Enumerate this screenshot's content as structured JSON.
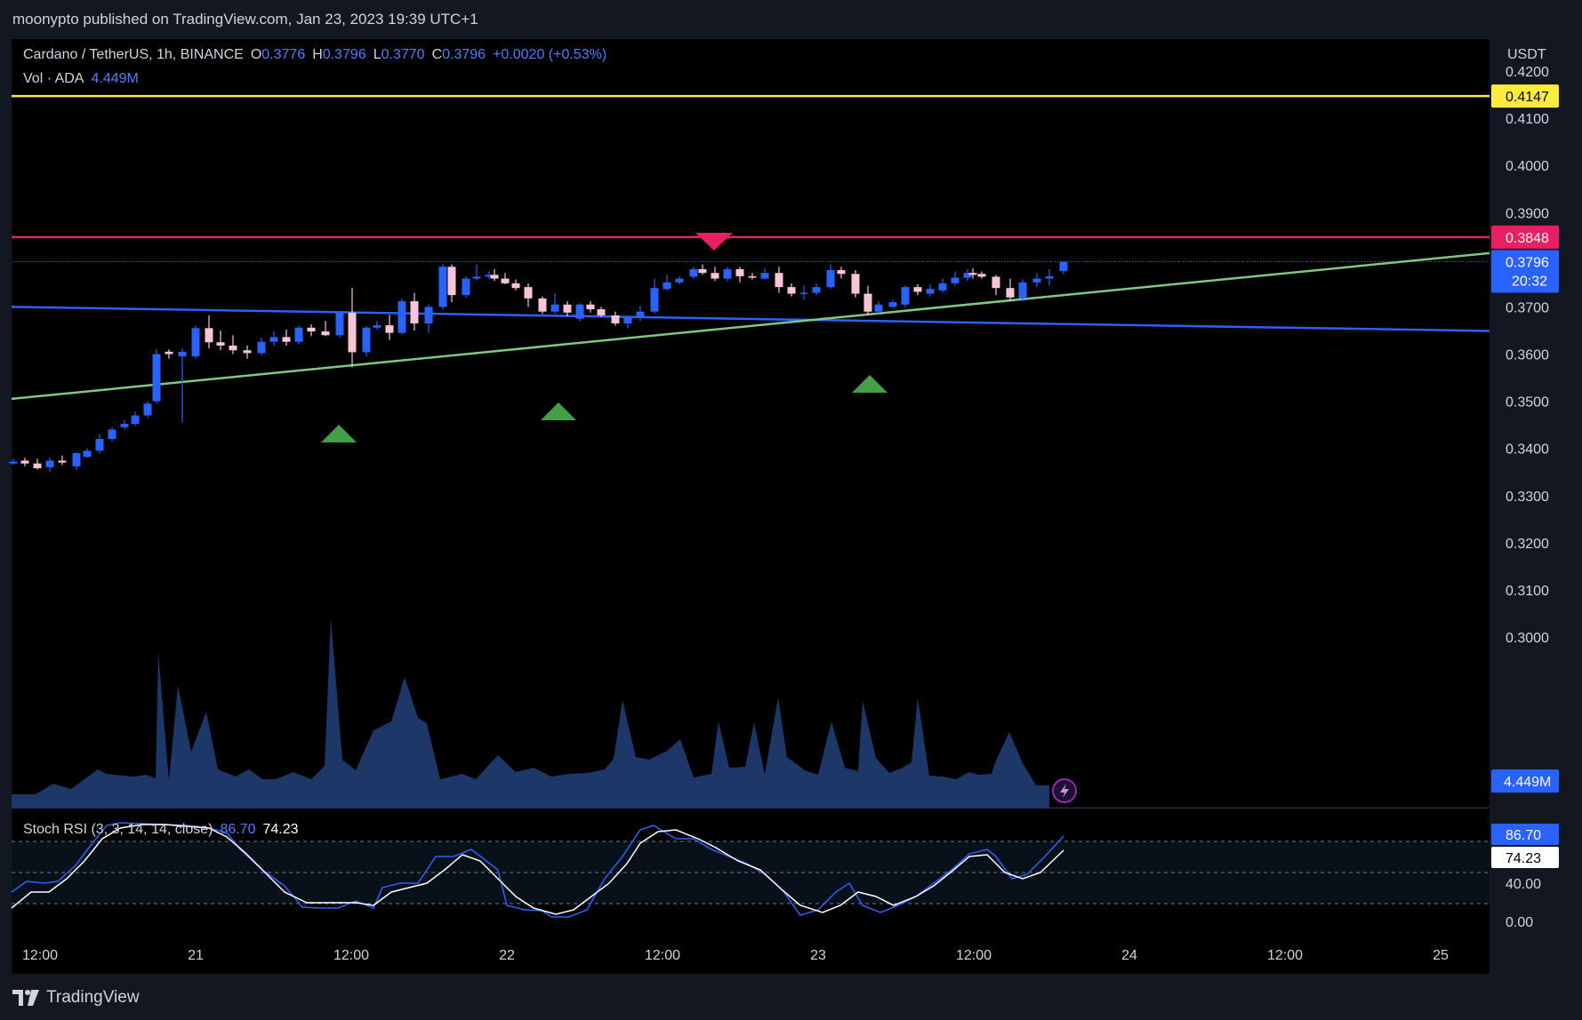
{
  "header": {
    "published_text": "moonypto published on TradingView.com, Jan 23, 2023 19:39 UTC+1"
  },
  "legend": {
    "symbol": "Cardano / TetherUS, 1h, BINANCE",
    "open_label": "O",
    "open": "0.3776",
    "high_label": "H",
    "high": "0.3796",
    "low_label": "L",
    "low": "0.3770",
    "close_label": "C",
    "close": "0.3796",
    "change": "+0.0020 (+0.53%)",
    "vol_label": "Vol · ADA",
    "vol_value": "4.449M",
    "stoch_label": "Stoch RSI (3, 3, 14, 14, close)",
    "stoch_k": "86.70",
    "stoch_d": "74.23"
  },
  "price_axis": {
    "currency": "USDT",
    "ticks": [
      "0.4200",
      "0.4100",
      "0.4000",
      "0.3900",
      "0.3700",
      "0.3600",
      "0.3500",
      "0.3400",
      "0.3300",
      "0.3200",
      "0.3100",
      "0.3000"
    ],
    "yellow_label": "0.4147",
    "red_label": "0.3848",
    "last_price_label": "0.3796",
    "countdown_label": "20:32",
    "volume_label": "4.449M"
  },
  "rsi_axis": {
    "ticks": [
      "40.00",
      "0.00"
    ],
    "k_label": "86.70",
    "d_label": "74.23"
  },
  "time_axis": {
    "ticks": [
      "12:00",
      "21",
      "12:00",
      "22",
      "12:00",
      "23",
      "12:00",
      "24",
      "12:00",
      "25"
    ]
  },
  "footer": {
    "brand": "TradingView"
  },
  "colors": {
    "background": "#131722",
    "chart_bg": "#000000",
    "up": "#2962ff",
    "down": "#f7c5d6",
    "yellow_line": "#ffeb3b",
    "red_line": "#e91e63",
    "blue_line": "#2962ff",
    "green_line": "#81c784",
    "volume_fill": "#1e3a6e",
    "stoch_k": "#2962ff",
    "stoch_d": "#ffffff",
    "marker_up": "#43a047",
    "marker_down": "#e91e63"
  },
  "chart_data": {
    "type": "candlestick",
    "title": "Cardano / TetherUS, 1h, BINANCE",
    "ylim": [
      0.294,
      0.4235
    ],
    "horizontal_levels": [
      {
        "name": "resistance-yellow",
        "value": 0.4147
      },
      {
        "name": "resistance-red",
        "value": 0.3848
      }
    ],
    "trendlines": [
      {
        "name": "blue",
        "from": [
          0,
          0.37
        ],
        "to": [
          98,
          0.3649
        ]
      },
      {
        "name": "green",
        "from": [
          0,
          0.3505
        ],
        "to": [
          98,
          0.3814
        ]
      }
    ],
    "markers": [
      {
        "type": "up",
        "index": 18
      },
      {
        "type": "up",
        "index": 31
      },
      {
        "type": "down",
        "index": 41
      },
      {
        "type": "up",
        "index": 50
      }
    ],
    "candles": [
      [
        0.3365,
        0.3378,
        0.336,
        0.3374
      ],
      [
        0.3374,
        0.338,
        0.3362,
        0.3368
      ],
      [
        0.3368,
        0.3378,
        0.3355,
        0.3358
      ],
      [
        0.3358,
        0.338,
        0.335,
        0.3376
      ],
      [
        0.3376,
        0.3385,
        0.337,
        0.3374
      ],
      [
        0.3374,
        0.3392,
        0.3355,
        0.339
      ],
      [
        0.339,
        0.341,
        0.3385,
        0.3405
      ],
      [
        0.3405,
        0.3435,
        0.34,
        0.343
      ],
      [
        0.343,
        0.345,
        0.3425,
        0.3445
      ],
      [
        0.3445,
        0.346,
        0.344,
        0.3452
      ],
      [
        0.3452,
        0.3478,
        0.3448,
        0.3474
      ],
      [
        0.3474,
        0.35,
        0.347,
        0.3495
      ],
      [
        0.3495,
        0.361,
        0.349,
        0.36
      ],
      [
        0.36,
        0.361,
        0.356,
        0.3605
      ],
      [
        0.3605,
        0.3612,
        0.3455,
        0.359
      ],
      [
        0.359,
        0.366,
        0.3585,
        0.3655
      ],
      [
        0.3655,
        0.3682,
        0.3612,
        0.362
      ],
      [
        0.362,
        0.365,
        0.3608,
        0.3618
      ],
      [
        0.3618,
        0.364,
        0.3585,
        0.3605
      ],
      [
        0.3605,
        0.3618,
        0.359,
        0.3602
      ],
      [
        0.3602,
        0.3635,
        0.3598,
        0.3626
      ],
      [
        0.3626,
        0.3648,
        0.3618,
        0.3636
      ],
      [
        0.3636,
        0.3652,
        0.3618,
        0.3624
      ],
      [
        0.3624,
        0.366,
        0.362,
        0.3654
      ],
      [
        0.3654,
        0.3663,
        0.3638,
        0.3646
      ],
      [
        0.3646,
        0.367,
        0.3638,
        0.364
      ],
      [
        0.364,
        0.369,
        0.3635,
        0.3686
      ],
      [
        0.3686,
        0.374,
        0.3572,
        0.3602
      ],
      [
        0.3602,
        0.366,
        0.3595,
        0.3656
      ],
      [
        0.3656,
        0.367,
        0.3652,
        0.3661
      ],
      [
        0.3661,
        0.3683,
        0.363,
        0.3645
      ],
      [
        0.3645,
        0.3718,
        0.3642,
        0.3712
      ],
      [
        0.3712,
        0.373,
        0.365,
        0.3665
      ],
      [
        0.3665,
        0.3705,
        0.3645,
        0.37
      ],
      [
        0.37,
        0.379,
        0.3695,
        0.3785
      ],
      [
        0.3785,
        0.379,
        0.371,
        0.3725
      ],
      [
        0.3725,
        0.3765,
        0.372,
        0.376
      ],
      [
        0.376,
        0.379,
        0.3756,
        0.3764
      ],
      [
        0.3764,
        0.3775,
        0.376,
        0.3768
      ],
      [
        0.3768,
        0.378,
        0.3755,
        0.376
      ],
      [
        0.376,
        0.3772,
        0.3748,
        0.3752
      ]
    ],
    "volume": [
      0.295,
      0.296,
      0.297,
      0.298,
      0.3,
      0.299,
      0.3085,
      0.3005,
      0.3085,
      0.301,
      0.307
    ]
  }
}
